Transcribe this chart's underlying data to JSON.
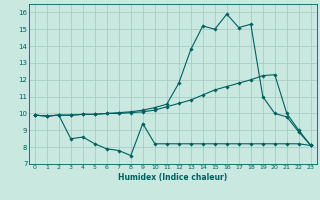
{
  "title": "",
  "xlabel": "Humidex (Indice chaleur)",
  "ylabel": "",
  "xlim": [
    -0.5,
    23.5
  ],
  "ylim": [
    7,
    16.5
  ],
  "yticks": [
    7,
    8,
    9,
    10,
    11,
    12,
    13,
    14,
    15,
    16
  ],
  "xticks": [
    0,
    1,
    2,
    3,
    4,
    5,
    6,
    7,
    8,
    9,
    10,
    11,
    12,
    13,
    14,
    15,
    16,
    17,
    18,
    19,
    20,
    21,
    22,
    23
  ],
  "bg_color": "#c8e8e0",
  "grid_color": "#a0c8c0",
  "line_color": "#006060",
  "curve1_x": [
    0,
    1,
    2,
    3,
    4,
    5,
    6,
    7,
    8,
    9,
    10,
    11,
    12,
    13,
    14,
    15,
    16,
    17,
    18,
    19,
    20,
    21,
    22,
    23
  ],
  "curve1_y": [
    9.9,
    9.85,
    9.9,
    9.9,
    9.95,
    9.95,
    10.0,
    10.0,
    10.05,
    10.1,
    10.2,
    10.4,
    10.6,
    10.8,
    11.1,
    11.4,
    11.6,
    11.8,
    12.0,
    12.25,
    12.3,
    10.0,
    9.0,
    8.1
  ],
  "curve2_x": [
    0,
    1,
    2,
    3,
    4,
    5,
    6,
    7,
    8,
    9,
    10,
    11,
    12,
    13,
    14,
    15,
    16,
    17,
    18,
    19,
    20,
    21,
    22,
    23
  ],
  "curve2_y": [
    9.9,
    9.85,
    9.9,
    9.9,
    9.95,
    9.95,
    10.0,
    10.05,
    10.1,
    10.2,
    10.35,
    10.55,
    11.8,
    13.8,
    15.2,
    15.0,
    15.9,
    15.1,
    15.3,
    11.0,
    10.0,
    9.8,
    8.9,
    8.1
  ],
  "curve3_x": [
    0,
    1,
    2,
    3,
    4,
    5,
    6,
    7,
    8,
    9,
    10,
    11,
    12,
    13,
    14,
    15,
    16,
    17,
    18,
    19,
    20,
    21,
    22,
    23
  ],
  "curve3_y": [
    9.9,
    9.85,
    9.9,
    8.5,
    8.6,
    8.2,
    7.9,
    7.8,
    7.5,
    9.4,
    8.2,
    8.2,
    8.2,
    8.2,
    8.2,
    8.2,
    8.2,
    8.2,
    8.2,
    8.2,
    8.2,
    8.2,
    8.2,
    8.1
  ]
}
